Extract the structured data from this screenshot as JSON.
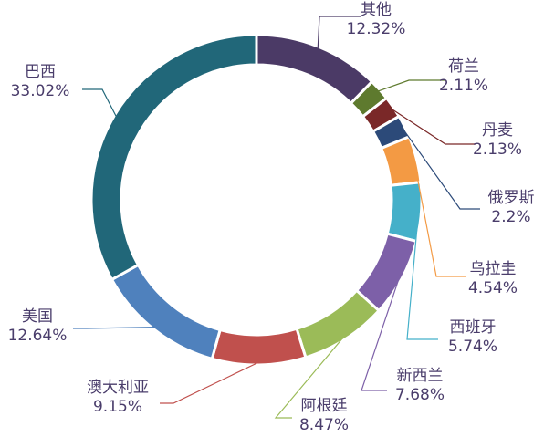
{
  "chart_data": {
    "type": "pie",
    "variant": "donut",
    "start": "top, clockwise",
    "legend": "none",
    "slices": [
      {
        "name": "其他",
        "value": 12.32,
        "label": "12.32%",
        "color": "#4b3a66"
      },
      {
        "name": "荷兰",
        "value": 2.11,
        "label": "2.11%",
        "color": "#5e7a2e"
      },
      {
        "name": "丹麦",
        "value": 2.13,
        "label": "2.13%",
        "color": "#7a2828"
      },
      {
        "name": "俄罗斯",
        "value": 2.2,
        "label": "2.2%",
        "color": "#2c4a79"
      },
      {
        "name": "乌拉圭",
        "value": 4.54,
        "label": "4.54%",
        "color": "#f39a44"
      },
      {
        "name": "西班牙",
        "value": 5.74,
        "label": "5.74%",
        "color": "#45b0c9"
      },
      {
        "name": "新西兰",
        "value": 7.68,
        "label": "7.68%",
        "color": "#7d60a8"
      },
      {
        "name": "阿根廷",
        "value": 8.47,
        "label": "8.47%",
        "color": "#9bbb58"
      },
      {
        "name": "澳大利亚",
        "value": 9.15,
        "label": "9.15%",
        "color": "#c0504d"
      },
      {
        "name": "美国",
        "value": 12.64,
        "label": "12.64%",
        "color": "#4f81bd"
      },
      {
        "name": "巴西",
        "value": 33.02,
        "label": "33.02%",
        "color": "#216779"
      }
    ]
  }
}
